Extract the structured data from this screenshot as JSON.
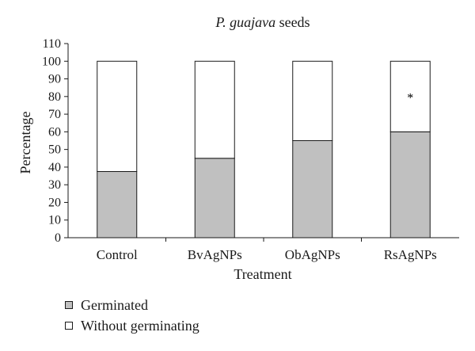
{
  "chart_data": {
    "type": "bar",
    "stacked": true,
    "title_italic": "P. guajava",
    "title_rest": " seeds",
    "xlabel": "Treatment",
    "ylabel": "Percentage",
    "ylim": [
      0,
      110
    ],
    "yticks": [
      0,
      10,
      20,
      30,
      40,
      50,
      60,
      70,
      80,
      90,
      100,
      110
    ],
    "categories": [
      "Control",
      "BvAgNPs",
      "ObAgNPs",
      "RsAgNPs"
    ],
    "series": [
      {
        "name": "Germinated",
        "values": [
          37.5,
          45,
          55,
          60
        ],
        "color": "#c0c0c0"
      },
      {
        "name": "Without germinating",
        "values": [
          62.5,
          55,
          45,
          40
        ],
        "color": "#ffffff"
      }
    ],
    "annotations": [
      {
        "category": "RsAgNPs",
        "text": "*",
        "y": 81
      }
    ],
    "grid": false,
    "legend_position": "bottom-left"
  }
}
